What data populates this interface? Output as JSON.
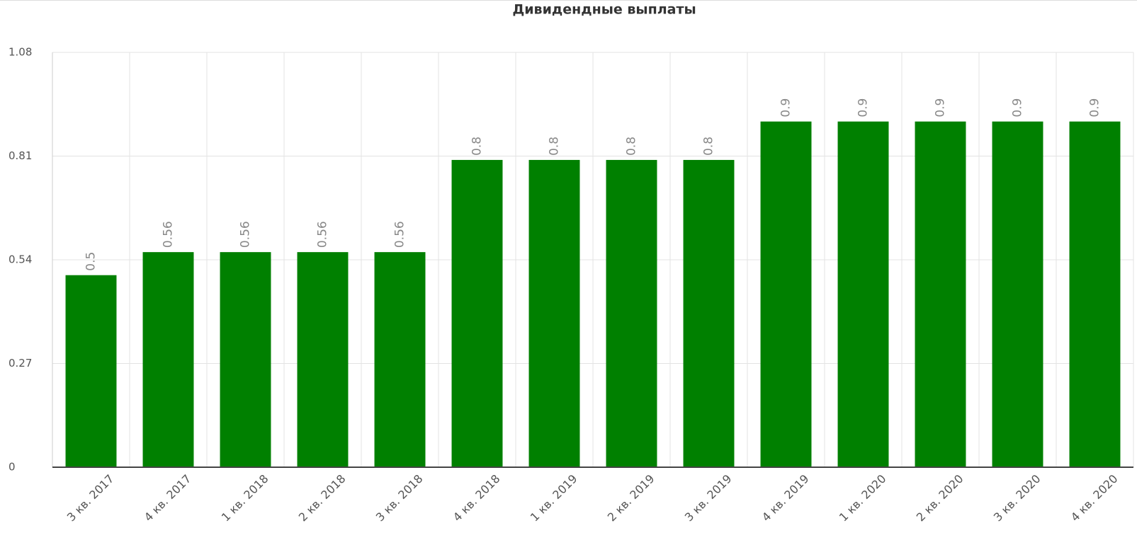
{
  "chart_data": {
    "type": "bar",
    "title": "Дивидендные выплаты",
    "categories": [
      "3 кв. 2017",
      "4 кв. 2017",
      "1 кв. 2018",
      "2 кв. 2018",
      "3 кв. 2018",
      "4 кв. 2018",
      "1 кв. 2019",
      "2 кв. 2019",
      "3 кв. 2019",
      "4 кв. 2019",
      "1 кв. 2020",
      "2 кв. 2020",
      "3 кв. 2020",
      "4 кв. 2020"
    ],
    "values": [
      0.5,
      0.56,
      0.56,
      0.56,
      0.56,
      0.8,
      0.8,
      0.8,
      0.8,
      0.9,
      0.9,
      0.9,
      0.9,
      0.9
    ],
    "color": "#008000",
    "ylim": [
      0,
      1.08
    ],
    "yticks": [
      0,
      0.27,
      0.54,
      0.81,
      1.08
    ],
    "grid": true
  }
}
